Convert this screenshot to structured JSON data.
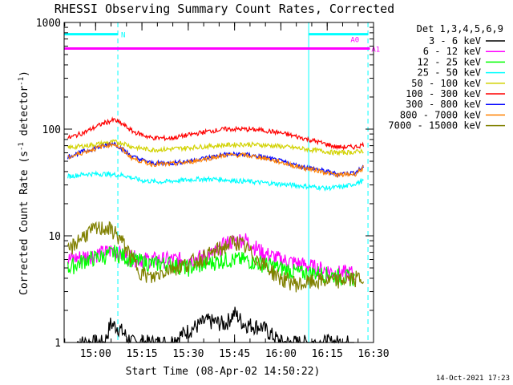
{
  "chart_data": {
    "type": "line",
    "title": "RHESSI Observing Summary Count Rates, Corrected",
    "xlabel": "Start Time (08-Apr-02 14:50:22)",
    "ylabel_main": "Corrected Count Rate (s",
    "ylabel_sup1": "-1",
    "ylabel_mid": " detector",
    "ylabel_sup2": "-1",
    "ylabel_end": ")",
    "y_scale": "log",
    "ylim": [
      1,
      1000
    ],
    "y_ticks": [
      1,
      10,
      100,
      1000
    ],
    "y_tick_labels": [
      "1",
      "10",
      "100",
      "1000"
    ],
    "x_range_minutes": [
      14.83,
      16.5
    ],
    "x_ticks": [
      15.0,
      15.25,
      15.5,
      15.75,
      16.0,
      16.25,
      16.5
    ],
    "x_tick_labels": [
      "15:00",
      "15:15",
      "15:30",
      "15:45",
      "16:00",
      "16:15",
      "16:30"
    ],
    "legend_title": "Det 1,3,4,5,6,9",
    "legend_position": "right",
    "timestamp": "14-Oct-2021 17:23",
    "series": [
      {
        "name": "3 - 6 keV",
        "color": "#000000",
        "points": [
          [
            14.9,
            1.0
          ],
          [
            15.0,
            1.0
          ],
          [
            15.05,
            1.0
          ],
          [
            15.08,
            1.5
          ],
          [
            15.12,
            1.4
          ],
          [
            15.2,
            1.0
          ],
          [
            15.3,
            1.0
          ],
          [
            15.4,
            1.0
          ],
          [
            15.5,
            1.3
          ],
          [
            15.6,
            1.6
          ],
          [
            15.7,
            1.5
          ],
          [
            15.75,
            1.9
          ],
          [
            15.8,
            1.5
          ],
          [
            15.9,
            1.4
          ],
          [
            16.0,
            1.0
          ],
          [
            16.1,
            1.0
          ],
          [
            16.2,
            1.0
          ],
          [
            16.3,
            1.0
          ],
          [
            16.4,
            1.0
          ]
        ]
      },
      {
        "name": "6 - 12 keV",
        "color": "#ff00ff",
        "points": [
          [
            14.85,
            6.0
          ],
          [
            14.95,
            6.5
          ],
          [
            15.05,
            7.0
          ],
          [
            15.1,
            7.5
          ],
          [
            15.15,
            6.5
          ],
          [
            15.25,
            6.0
          ],
          [
            15.35,
            6.0
          ],
          [
            15.45,
            6.0
          ],
          [
            15.55,
            6.2
          ],
          [
            15.65,
            7.0
          ],
          [
            15.7,
            8.5
          ],
          [
            15.8,
            9.5
          ],
          [
            15.9,
            7.0
          ],
          [
            16.0,
            6.0
          ],
          [
            16.1,
            5.5
          ],
          [
            16.2,
            5.0
          ],
          [
            16.3,
            4.5
          ],
          [
            16.4,
            4.5
          ]
        ]
      },
      {
        "name": "12 - 25 keV",
        "color": "#00ff00",
        "points": [
          [
            14.85,
            5.0
          ],
          [
            14.95,
            6.0
          ],
          [
            15.05,
            6.5
          ],
          [
            15.1,
            7.0
          ],
          [
            15.2,
            6.0
          ],
          [
            15.3,
            5.5
          ],
          [
            15.4,
            5.5
          ],
          [
            15.5,
            5.0
          ],
          [
            15.6,
            5.5
          ],
          [
            15.7,
            6.0
          ],
          [
            15.8,
            6.0
          ],
          [
            15.9,
            5.5
          ],
          [
            16.0,
            5.0
          ],
          [
            16.1,
            4.5
          ],
          [
            16.2,
            4.5
          ],
          [
            16.3,
            4.2
          ],
          [
            16.4,
            4.0
          ]
        ]
      },
      {
        "name": "25 - 50 keV",
        "color": "#00ffff",
        "points": [
          [
            14.85,
            36
          ],
          [
            14.95,
            38
          ],
          [
            15.05,
            38
          ],
          [
            15.15,
            37
          ],
          [
            15.25,
            33
          ],
          [
            15.35,
            32
          ],
          [
            15.45,
            33
          ],
          [
            15.55,
            34
          ],
          [
            15.65,
            34
          ],
          [
            15.75,
            33
          ],
          [
            15.85,
            32
          ],
          [
            15.95,
            31
          ],
          [
            16.05,
            30
          ],
          [
            16.15,
            29
          ],
          [
            16.25,
            28
          ],
          [
            16.35,
            29
          ],
          [
            16.45,
            33
          ]
        ]
      },
      {
        "name": "50 - 100 keV",
        "color": "#d2d200",
        "points": [
          [
            14.85,
            67
          ],
          [
            14.95,
            70
          ],
          [
            15.05,
            74
          ],
          [
            15.1,
            76
          ],
          [
            15.15,
            74
          ],
          [
            15.2,
            68
          ],
          [
            15.3,
            64
          ],
          [
            15.4,
            65
          ],
          [
            15.5,
            67
          ],
          [
            15.6,
            69
          ],
          [
            15.7,
            71
          ],
          [
            15.8,
            72
          ],
          [
            15.9,
            71
          ],
          [
            16.0,
            69
          ],
          [
            16.1,
            66
          ],
          [
            16.2,
            63
          ],
          [
            16.3,
            60
          ],
          [
            16.4,
            61
          ],
          [
            16.45,
            63
          ]
        ]
      },
      {
        "name": "100 - 300 keV",
        "color": "#ff0000",
        "points": [
          [
            14.85,
            82
          ],
          [
            14.95,
            95
          ],
          [
            15.0,
            105
          ],
          [
            15.05,
            115
          ],
          [
            15.1,
            122
          ],
          [
            15.15,
            110
          ],
          [
            15.2,
            95
          ],
          [
            15.3,
            83
          ],
          [
            15.4,
            82
          ],
          [
            15.5,
            88
          ],
          [
            15.6,
            95
          ],
          [
            15.7,
            100
          ],
          [
            15.8,
            100
          ],
          [
            15.9,
            98
          ],
          [
            16.0,
            92
          ],
          [
            16.1,
            84
          ],
          [
            16.2,
            76
          ],
          [
            16.3,
            68
          ],
          [
            16.4,
            68
          ],
          [
            16.45,
            72
          ]
        ]
      },
      {
        "name": "300 - 800 keV",
        "color": "#0000ff",
        "points": [
          [
            14.85,
            55
          ],
          [
            14.95,
            63
          ],
          [
            15.05,
            70
          ],
          [
            15.1,
            74
          ],
          [
            15.15,
            64
          ],
          [
            15.2,
            55
          ],
          [
            15.3,
            48
          ],
          [
            15.4,
            48
          ],
          [
            15.5,
            50
          ],
          [
            15.6,
            54
          ],
          [
            15.7,
            58
          ],
          [
            15.8,
            58
          ],
          [
            15.9,
            55
          ],
          [
            16.0,
            50
          ],
          [
            16.1,
            45
          ],
          [
            16.2,
            42
          ],
          [
            16.3,
            38
          ],
          [
            16.4,
            39
          ],
          [
            16.45,
            45
          ]
        ]
      },
      {
        "name": "800 - 7000 keV",
        "color": "#ff8000",
        "points": [
          [
            14.85,
            54
          ],
          [
            14.95,
            62
          ],
          [
            15.05,
            70
          ],
          [
            15.1,
            73
          ],
          [
            15.15,
            63
          ],
          [
            15.2,
            53
          ],
          [
            15.3,
            47
          ],
          [
            15.4,
            47
          ],
          [
            15.5,
            49
          ],
          [
            15.6,
            53
          ],
          [
            15.7,
            57
          ],
          [
            15.8,
            57
          ],
          [
            15.9,
            54
          ],
          [
            16.0,
            49
          ],
          [
            16.1,
            44
          ],
          [
            16.2,
            41
          ],
          [
            16.3,
            37
          ],
          [
            16.4,
            38
          ],
          [
            16.45,
            44
          ]
        ]
      },
      {
        "name": "7000 - 15000 keV",
        "color": "#808000",
        "points": [
          [
            14.85,
            7.0
          ],
          [
            14.9,
            9.0
          ],
          [
            14.95,
            10.5
          ],
          [
            15.0,
            11.5
          ],
          [
            15.05,
            12.0
          ],
          [
            15.1,
            11.0
          ],
          [
            15.15,
            8.5
          ],
          [
            15.2,
            6.0
          ],
          [
            15.25,
            4.5
          ],
          [
            15.3,
            4.0
          ],
          [
            15.35,
            4.5
          ],
          [
            15.4,
            5.0
          ],
          [
            15.5,
            5.5
          ],
          [
            15.6,
            6.5
          ],
          [
            15.7,
            8.0
          ],
          [
            15.75,
            9.0
          ],
          [
            15.8,
            8.0
          ],
          [
            15.9,
            5.5
          ],
          [
            16.0,
            4.0
          ],
          [
            16.1,
            3.5
          ],
          [
            16.2,
            3.8
          ],
          [
            16.3,
            3.8
          ],
          [
            16.4,
            4.0
          ],
          [
            16.45,
            4.0
          ]
        ]
      }
    ],
    "attenuator_bars": [
      {
        "label": "A0",
        "color": "#ff00ff",
        "x0": 14.83,
        "x1": 16.48,
        "y": 570
      },
      {
        "label": "A1",
        "color": "#ff00ff",
        "x0": 16.47,
        "x1": 16.48,
        "y": 570
      }
    ],
    "night_bars": [
      {
        "label": "N",
        "color": "#00ffff",
        "x0": 14.83,
        "x1": 15.12,
        "y": 750
      },
      {
        "label": "",
        "color": "#00ffff",
        "x0": 16.15,
        "x1": 16.47,
        "y": 750
      }
    ],
    "vlines_solid": [
      14.83,
      16.15
    ],
    "vlines_dashed": [
      15.12,
      16.47
    ]
  }
}
